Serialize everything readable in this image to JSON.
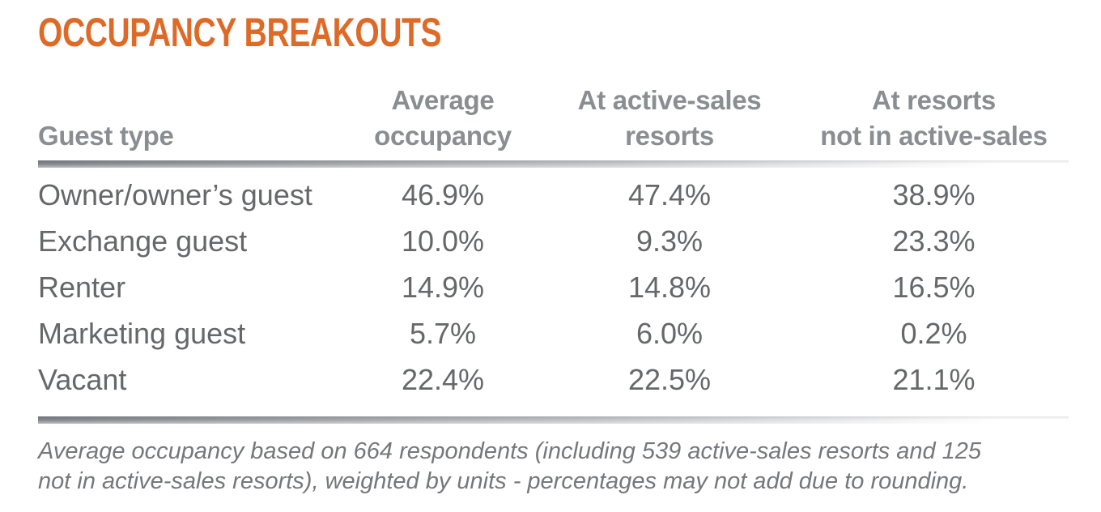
{
  "title": "OCCUPANCY BREAKOUTS",
  "colors": {
    "accent_orange": "#DE6A28",
    "header_gray": "#8A8D91",
    "body_gray": "#656769",
    "footnote_gray": "#75777A",
    "rule_gradient_start": "#84888D"
  },
  "table": {
    "columns": [
      "Guest type",
      "Average\noccupancy",
      "At active-sales\nresorts",
      "At resorts\nnot in active-sales"
    ],
    "rows": [
      {
        "label": "Owner/owner’s guest",
        "values": [
          "46.9%",
          "47.4%",
          "38.9%"
        ]
      },
      {
        "label": "Exchange guest",
        "values": [
          "10.0%",
          "9.3%",
          "23.3%"
        ]
      },
      {
        "label": "Renter",
        "values": [
          "14.9%",
          "14.8%",
          "16.5%"
        ]
      },
      {
        "label": "Marketing guest",
        "values": [
          "5.7%",
          "6.0%",
          "0.2%"
        ]
      },
      {
        "label": "Vacant",
        "values": [
          "22.4%",
          "22.5%",
          "21.1%"
        ]
      }
    ]
  },
  "footnote": {
    "line1": "Average occupancy based on 664 respondents (including 539 active-sales resorts and 125",
    "line2": "not in active-sales resorts), weighted by units - percentages may not add due to rounding."
  },
  "chart_data": {
    "type": "table",
    "title": "OCCUPANCY BREAKOUTS",
    "columns": [
      "Guest type",
      "Average occupancy",
      "At active-sales resorts",
      "At resorts not in active-sales"
    ],
    "rows": [
      [
        "Owner/owner’s guest",
        46.9,
        47.4,
        38.9
      ],
      [
        "Exchange guest",
        10.0,
        9.3,
        23.3
      ],
      [
        "Renter",
        14.9,
        14.8,
        16.5
      ],
      [
        "Marketing guest",
        5.7,
        6.0,
        0.2
      ],
      [
        "Vacant",
        22.4,
        22.5,
        21.1
      ]
    ],
    "units": "%",
    "footnote": "Average occupancy based on 664 respondents (including 539 active-sales resorts and 125 not in active-sales resorts), weighted by units - percentages may not add due to rounding."
  }
}
